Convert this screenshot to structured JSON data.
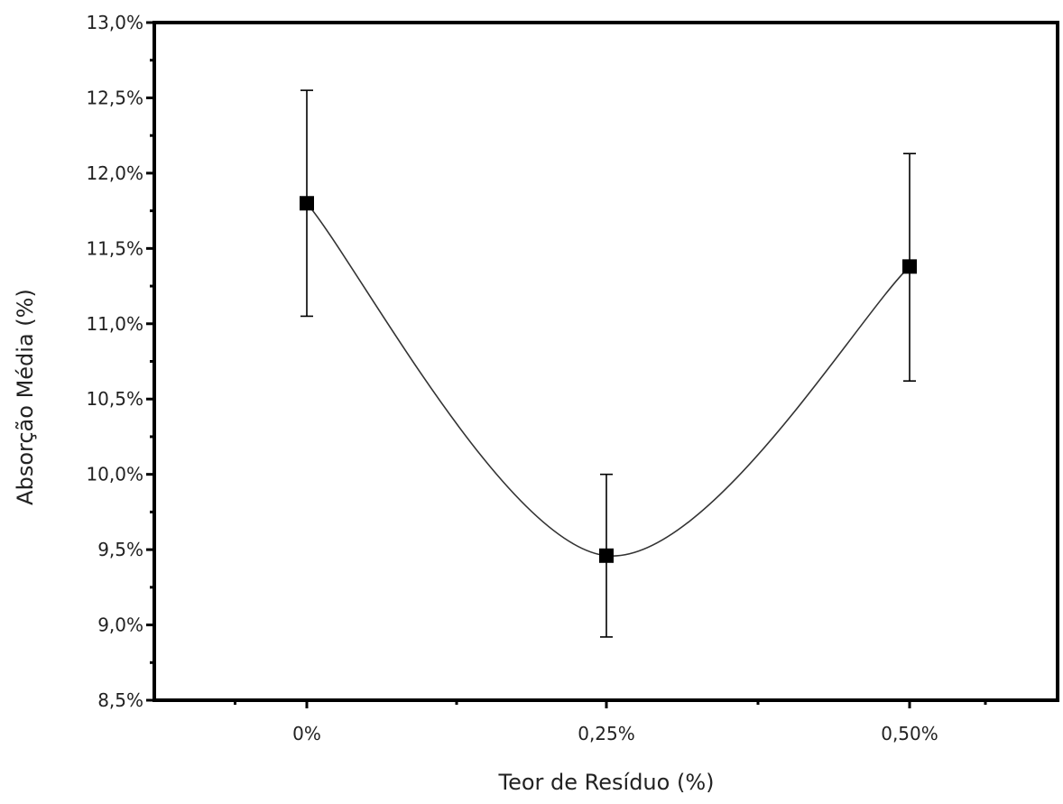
{
  "chart_data": {
    "type": "line",
    "title": "",
    "xlabel": "Teor de Resíduo (%)",
    "ylabel": "Absorção Média (%)",
    "categories": [
      "0%",
      "0,25%",
      "0,50%"
    ],
    "ylim": [
      8.5,
      13.0
    ],
    "y_ticks": [
      "8,5%",
      "9,0%",
      "9,5%",
      "10,0%",
      "10,5%",
      "11,0%",
      "11,5%",
      "12,0%",
      "12,5%",
      "13,0%"
    ],
    "series": [
      {
        "values": [
          11.8,
          9.46,
          11.38
        ],
        "error_low": [
          11.05,
          8.92,
          10.62
        ],
        "error_high": [
          12.55,
          10.0,
          12.13
        ],
        "marker": "square",
        "color": "#000000",
        "line": "smooth"
      }
    ],
    "grid": false,
    "legend": "none"
  }
}
